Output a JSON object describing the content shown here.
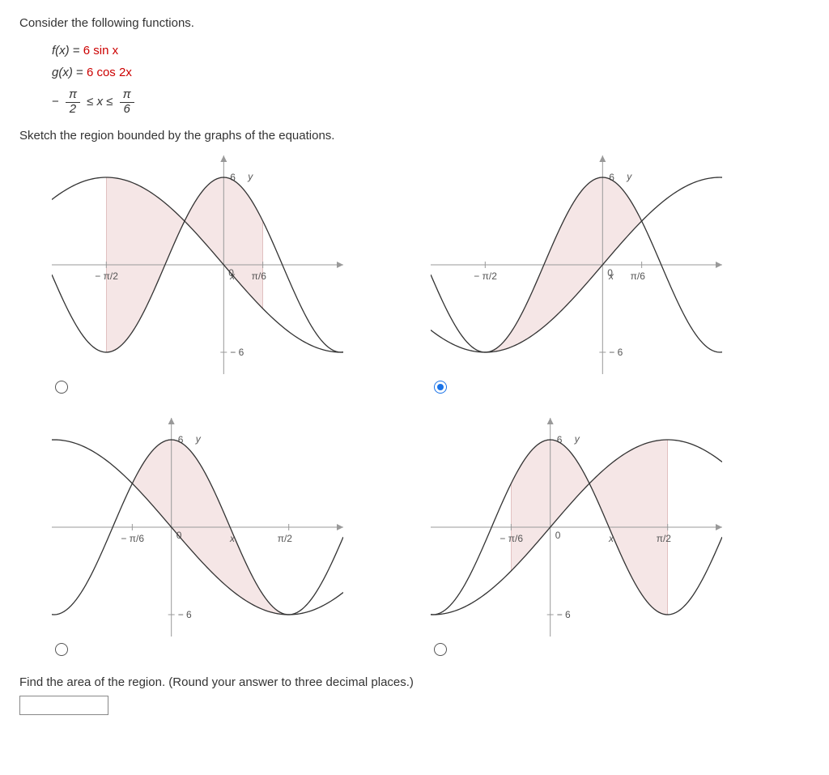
{
  "question": {
    "intro": "Consider the following functions.",
    "f_label": "f(x)",
    "f_eq": " = ",
    "f_rhs": "6 sin x",
    "g_label": "g(x)",
    "g_eq": " = ",
    "g_rhs": "6 cos 2x",
    "domain_lhs_num": "π",
    "domain_lhs_den": "2",
    "domain_mid": " ≤ x ≤ ",
    "domain_rhs_num": "π",
    "domain_rhs_den": "6",
    "neg": "−",
    "sketch_instruction": "Sketch the region bounded by the graphs of the equations.",
    "final_prompt": "Find the area of the region. (Round your answer to three decimal places.)",
    "answer_value": ""
  },
  "graphs": {
    "colors": {
      "axis": "#999999",
      "curve": "#333333",
      "fill": "#f5e6e6",
      "fill_stroke": "#cc9999",
      "tick_text": "#666666"
    },
    "options": [
      {
        "id": "A",
        "selected": false,
        "xrange": [
          -2.3,
          1.6
        ],
        "yrange": [
          -7.5,
          7.5
        ],
        "xtick_labels": [
          {
            "x": -1.5708,
            "label": "− π/2"
          },
          {
            "x": 0.5236,
            "label": "π/6"
          }
        ],
        "ytick_labels": [
          {
            "y": 6,
            "label": "6"
          },
          {
            "y": -6,
            "label": "− 6"
          }
        ],
        "y_label_pos": "right",
        "f_curve": "6*Math.sin(-x)",
        "g_curve": "6*Math.cos(-2*x)",
        "region": [
          -1.5708,
          0.5236
        ],
        "upper": "6*Math.cos(-2*x)",
        "lower": "6*Math.sin(-x)"
      },
      {
        "id": "B",
        "selected": true,
        "xrange": [
          -2.3,
          1.6
        ],
        "yrange": [
          -7.5,
          7.5
        ],
        "xtick_labels": [
          {
            "x": -1.5708,
            "label": "− π/2"
          },
          {
            "x": 0.5236,
            "label": "π/6"
          }
        ],
        "ytick_labels": [
          {
            "y": 6,
            "label": "6"
          },
          {
            "y": -6,
            "label": "− 6"
          }
        ],
        "y_label_pos": "right",
        "f_curve": "6*Math.sin(x)",
        "g_curve": "6*Math.cos(2*x)",
        "region": [
          -1.5708,
          0.5236
        ],
        "upper": "6*Math.cos(2*x)",
        "lower": "6*Math.sin(x)"
      },
      {
        "id": "C",
        "selected": false,
        "xrange": [
          -1.6,
          2.3
        ],
        "yrange": [
          -7.5,
          7.5
        ],
        "xtick_labels": [
          {
            "x": -0.5236,
            "label": "− π/6"
          },
          {
            "x": 1.5708,
            "label": "π/2"
          }
        ],
        "ytick_labels": [
          {
            "y": 6,
            "label": "6"
          },
          {
            "y": -6,
            "label": "− 6"
          }
        ],
        "y_label_pos": "right",
        "f_curve": "6*Math.sin(-x)",
        "g_curve": "6*Math.cos(-2*x)",
        "region": [
          -0.5236,
          1.5708
        ],
        "upper": "6*Math.cos(-2*x)",
        "lower": "6*Math.sin(-x)"
      },
      {
        "id": "D",
        "selected": false,
        "xrange": [
          -1.6,
          2.3
        ],
        "yrange": [
          -7.5,
          7.5
        ],
        "xtick_labels": [
          {
            "x": -0.5236,
            "label": "− π/6"
          },
          {
            "x": 1.5708,
            "label": "π/2"
          }
        ],
        "ytick_labels": [
          {
            "y": 6,
            "label": "6"
          },
          {
            "y": -6,
            "label": "− 6"
          }
        ],
        "y_label_pos": "right",
        "f_curve": "6*Math.sin(x)",
        "g_curve": "6*Math.cos(2*x)",
        "region": [
          -0.5236,
          1.5708
        ],
        "upper": "6*Math.cos(2*x)",
        "lower": "6*Math.sin(x)"
      }
    ]
  }
}
